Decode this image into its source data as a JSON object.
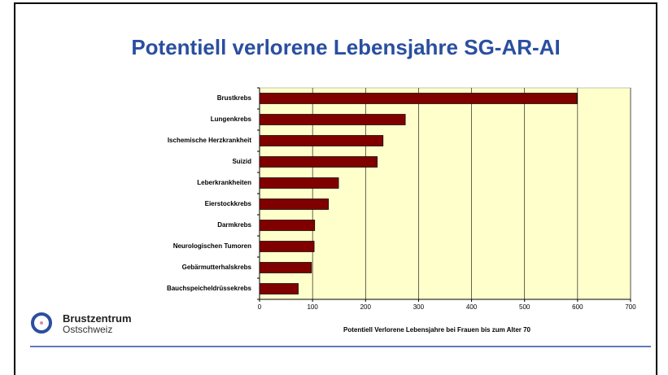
{
  "chart_data": {
    "type": "bar",
    "orientation": "horizontal",
    "title": "Potentiell verlorene Lebensjahre SG-AR-AI",
    "xlabel": "Potentiell Verlorene Lebensjahre bei Frauen bis zum Alter 70",
    "categories": [
      "Brustkrebs",
      "Lungenkrebs",
      "Ischemische Herzkrankheit",
      "Suizid",
      "Leberkrankheiten",
      "Eierstockkrebs",
      "Darmkrebs",
      "Neurologischen Tumoren",
      "Gebärmutterhalskrebs",
      "Bauchspeicheldrüssekrebs"
    ],
    "values": [
      599,
      275,
      233,
      222,
      149,
      130,
      104,
      103,
      98,
      73
    ],
    "color": "#800000",
    "xlim": [
      0,
      700
    ],
    "xticks": [
      0,
      100,
      200,
      300,
      400,
      500,
      600,
      700
    ],
    "grid": true,
    "plot_background": "#ffffcc"
  },
  "logo": {
    "name": "Brustzentrum",
    "region": "Ostschweiz"
  }
}
